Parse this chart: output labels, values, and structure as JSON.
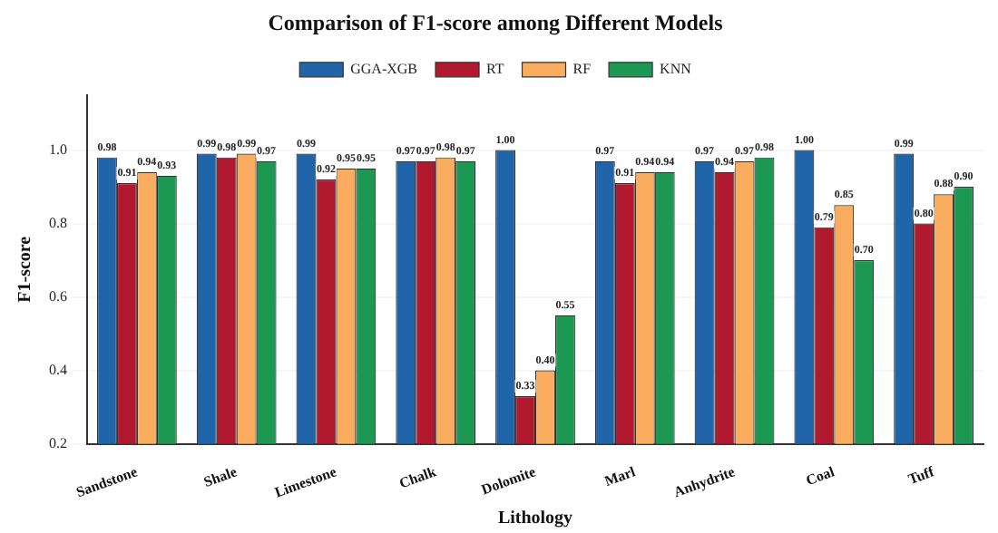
{
  "chart_data": {
    "type": "bar",
    "title": "Comparison of F1-score among Different Models",
    "xlabel": "Lithology",
    "ylabel": "F1-score",
    "categories": [
      "Sandstone",
      "Shale",
      "Limestone",
      "Chalk",
      "Dolomite",
      "Marl",
      "Anhydrite",
      "Coal",
      "Tuff"
    ],
    "series": [
      {
        "name": "GGA-XGB",
        "color": "#2064aa",
        "values": [
          0.98,
          0.99,
          0.99,
          0.97,
          1.0,
          0.97,
          0.97,
          1.0,
          0.99
        ],
        "value_labels": [
          "0.98",
          "0.99",
          "0.99",
          "0.97",
          "1.00",
          "0.97",
          "0.97",
          "1.00",
          "0.99"
        ]
      },
      {
        "name": "RT",
        "color": "#b0192e",
        "values": [
          0.91,
          0.98,
          0.92,
          0.97,
          0.33,
          0.91,
          0.94,
          0.79,
          0.8
        ],
        "value_labels": [
          "0.91",
          "0.98",
          "0.92",
          "0.97",
          "0.33",
          "0.91",
          "0.94",
          "0.79",
          "0.80"
        ]
      },
      {
        "name": "RF",
        "color": "#fbad5f",
        "values": [
          0.94,
          0.99,
          0.95,
          0.98,
          0.4,
          0.94,
          0.97,
          0.85,
          0.88
        ],
        "value_labels": [
          "0.94",
          "0.99",
          "0.95",
          "0.98",
          "0.40",
          "0.94",
          "0.97",
          "0.85",
          "0.88"
        ]
      },
      {
        "name": "KNN",
        "color": "#1c9852",
        "values": [
          0.93,
          0.97,
          0.95,
          0.97,
          0.55,
          0.94,
          0.98,
          0.7,
          0.9
        ],
        "value_labels": [
          "0.93",
          "0.97",
          "0.95",
          "0.97",
          "0.55",
          "0.94",
          "0.98",
          "0.70",
          "0.90"
        ]
      }
    ],
    "ylim": [
      0.2,
      1.15
    ],
    "yticks": [
      {
        "value": 0.2,
        "label": "0.2"
      },
      {
        "value": 0.4,
        "label": "0.4"
      },
      {
        "value": 0.6,
        "label": "0.6"
      },
      {
        "value": 0.8,
        "label": "0.8"
      },
      {
        "value": 1.0,
        "label": "1.0"
      }
    ],
    "grid": "y",
    "legend": "top"
  }
}
